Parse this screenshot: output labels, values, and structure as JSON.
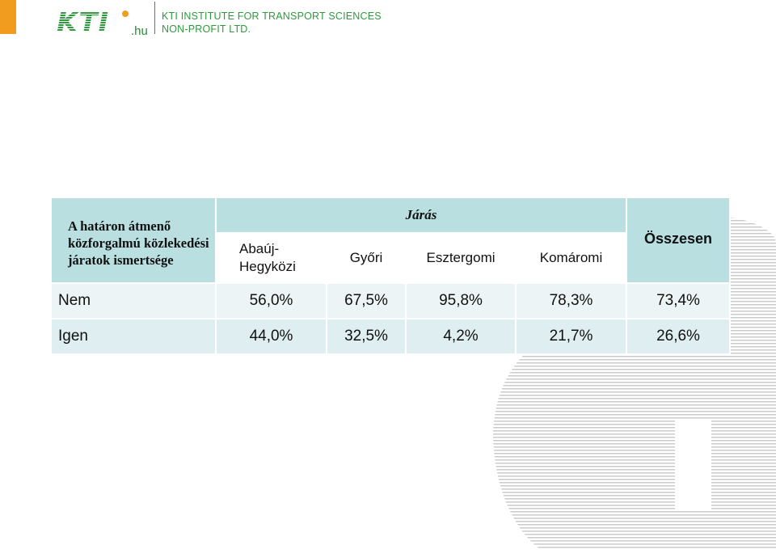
{
  "header": {
    "logo_text": "KTI",
    "logo_domain": ".hu",
    "org_line1": "KTI INSTITUTE FOR TRANSPORT SCIENCES",
    "org_line2": "NON-PROFIT LTD."
  },
  "table": {
    "corner_label": "A határon átmenő közforgalmú közlekedési járatok ismertsége",
    "group_label": "Járás",
    "total_label": "Összesen",
    "columns": [
      "Abaúj-Hegyközi",
      "Győri",
      "Esztergomi",
      "Komáromi"
    ],
    "column_1_line1": "Abaúj-",
    "column_1_line2": "Hegyközi",
    "rows": [
      {
        "label": "Nem",
        "values": [
          "56,0%",
          "67,5%",
          "95,8%",
          "78,3%"
        ],
        "total": "73,4%"
      },
      {
        "label": "Igen",
        "values": [
          "44,0%",
          "32,5%",
          "4,2%",
          "21,7%"
        ],
        "total": "26,6%"
      }
    ]
  },
  "colors": {
    "brand_green": "#2e9a3e",
    "brand_orange": "#f29c1f",
    "header_fill": "#b9dfe1",
    "row_fill_light": "#edf4f5",
    "row_fill_dark": "#dfeef0"
  }
}
